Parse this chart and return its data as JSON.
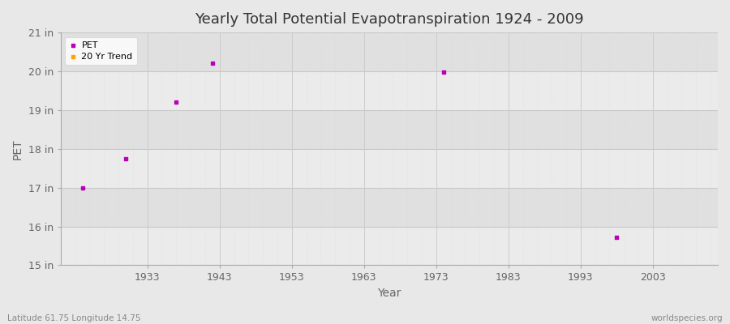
{
  "title": "Yearly Total Potential Evapotranspiration 1924 - 2009",
  "xlabel": "Year",
  "ylabel": "PET",
  "subtitle_left": "Latitude 61.75 Longitude 14.75",
  "subtitle_right": "worldspecies.org",
  "background_color": "#e8e8e8",
  "plot_bg_color": "#e8e8e8",
  "row_colors": [
    "#ebebeb",
    "#e0e0e0"
  ],
  "grid_major_color": "#c8c8c8",
  "grid_minor_color": "#d8d8d8",
  "pet_color": "#bb00bb",
  "trend_color": "#ffa500",
  "xlim": [
    1921,
    2012
  ],
  "ylim": [
    15,
    21
  ],
  "ytick_labels": [
    "15 in",
    "16 in",
    "17 in",
    "18 in",
    "19 in",
    "20 in",
    "21 in"
  ],
  "ytick_values": [
    15,
    16,
    17,
    18,
    19,
    20,
    21
  ],
  "xtick_values": [
    1933,
    1943,
    1953,
    1963,
    1973,
    1983,
    1993,
    2003
  ],
  "pet_data": [
    [
      1924,
      17.0
    ],
    [
      1930,
      17.75
    ],
    [
      1937,
      19.2
    ],
    [
      1942,
      20.2
    ],
    [
      1974,
      19.98
    ],
    [
      1998,
      15.72
    ]
  ]
}
